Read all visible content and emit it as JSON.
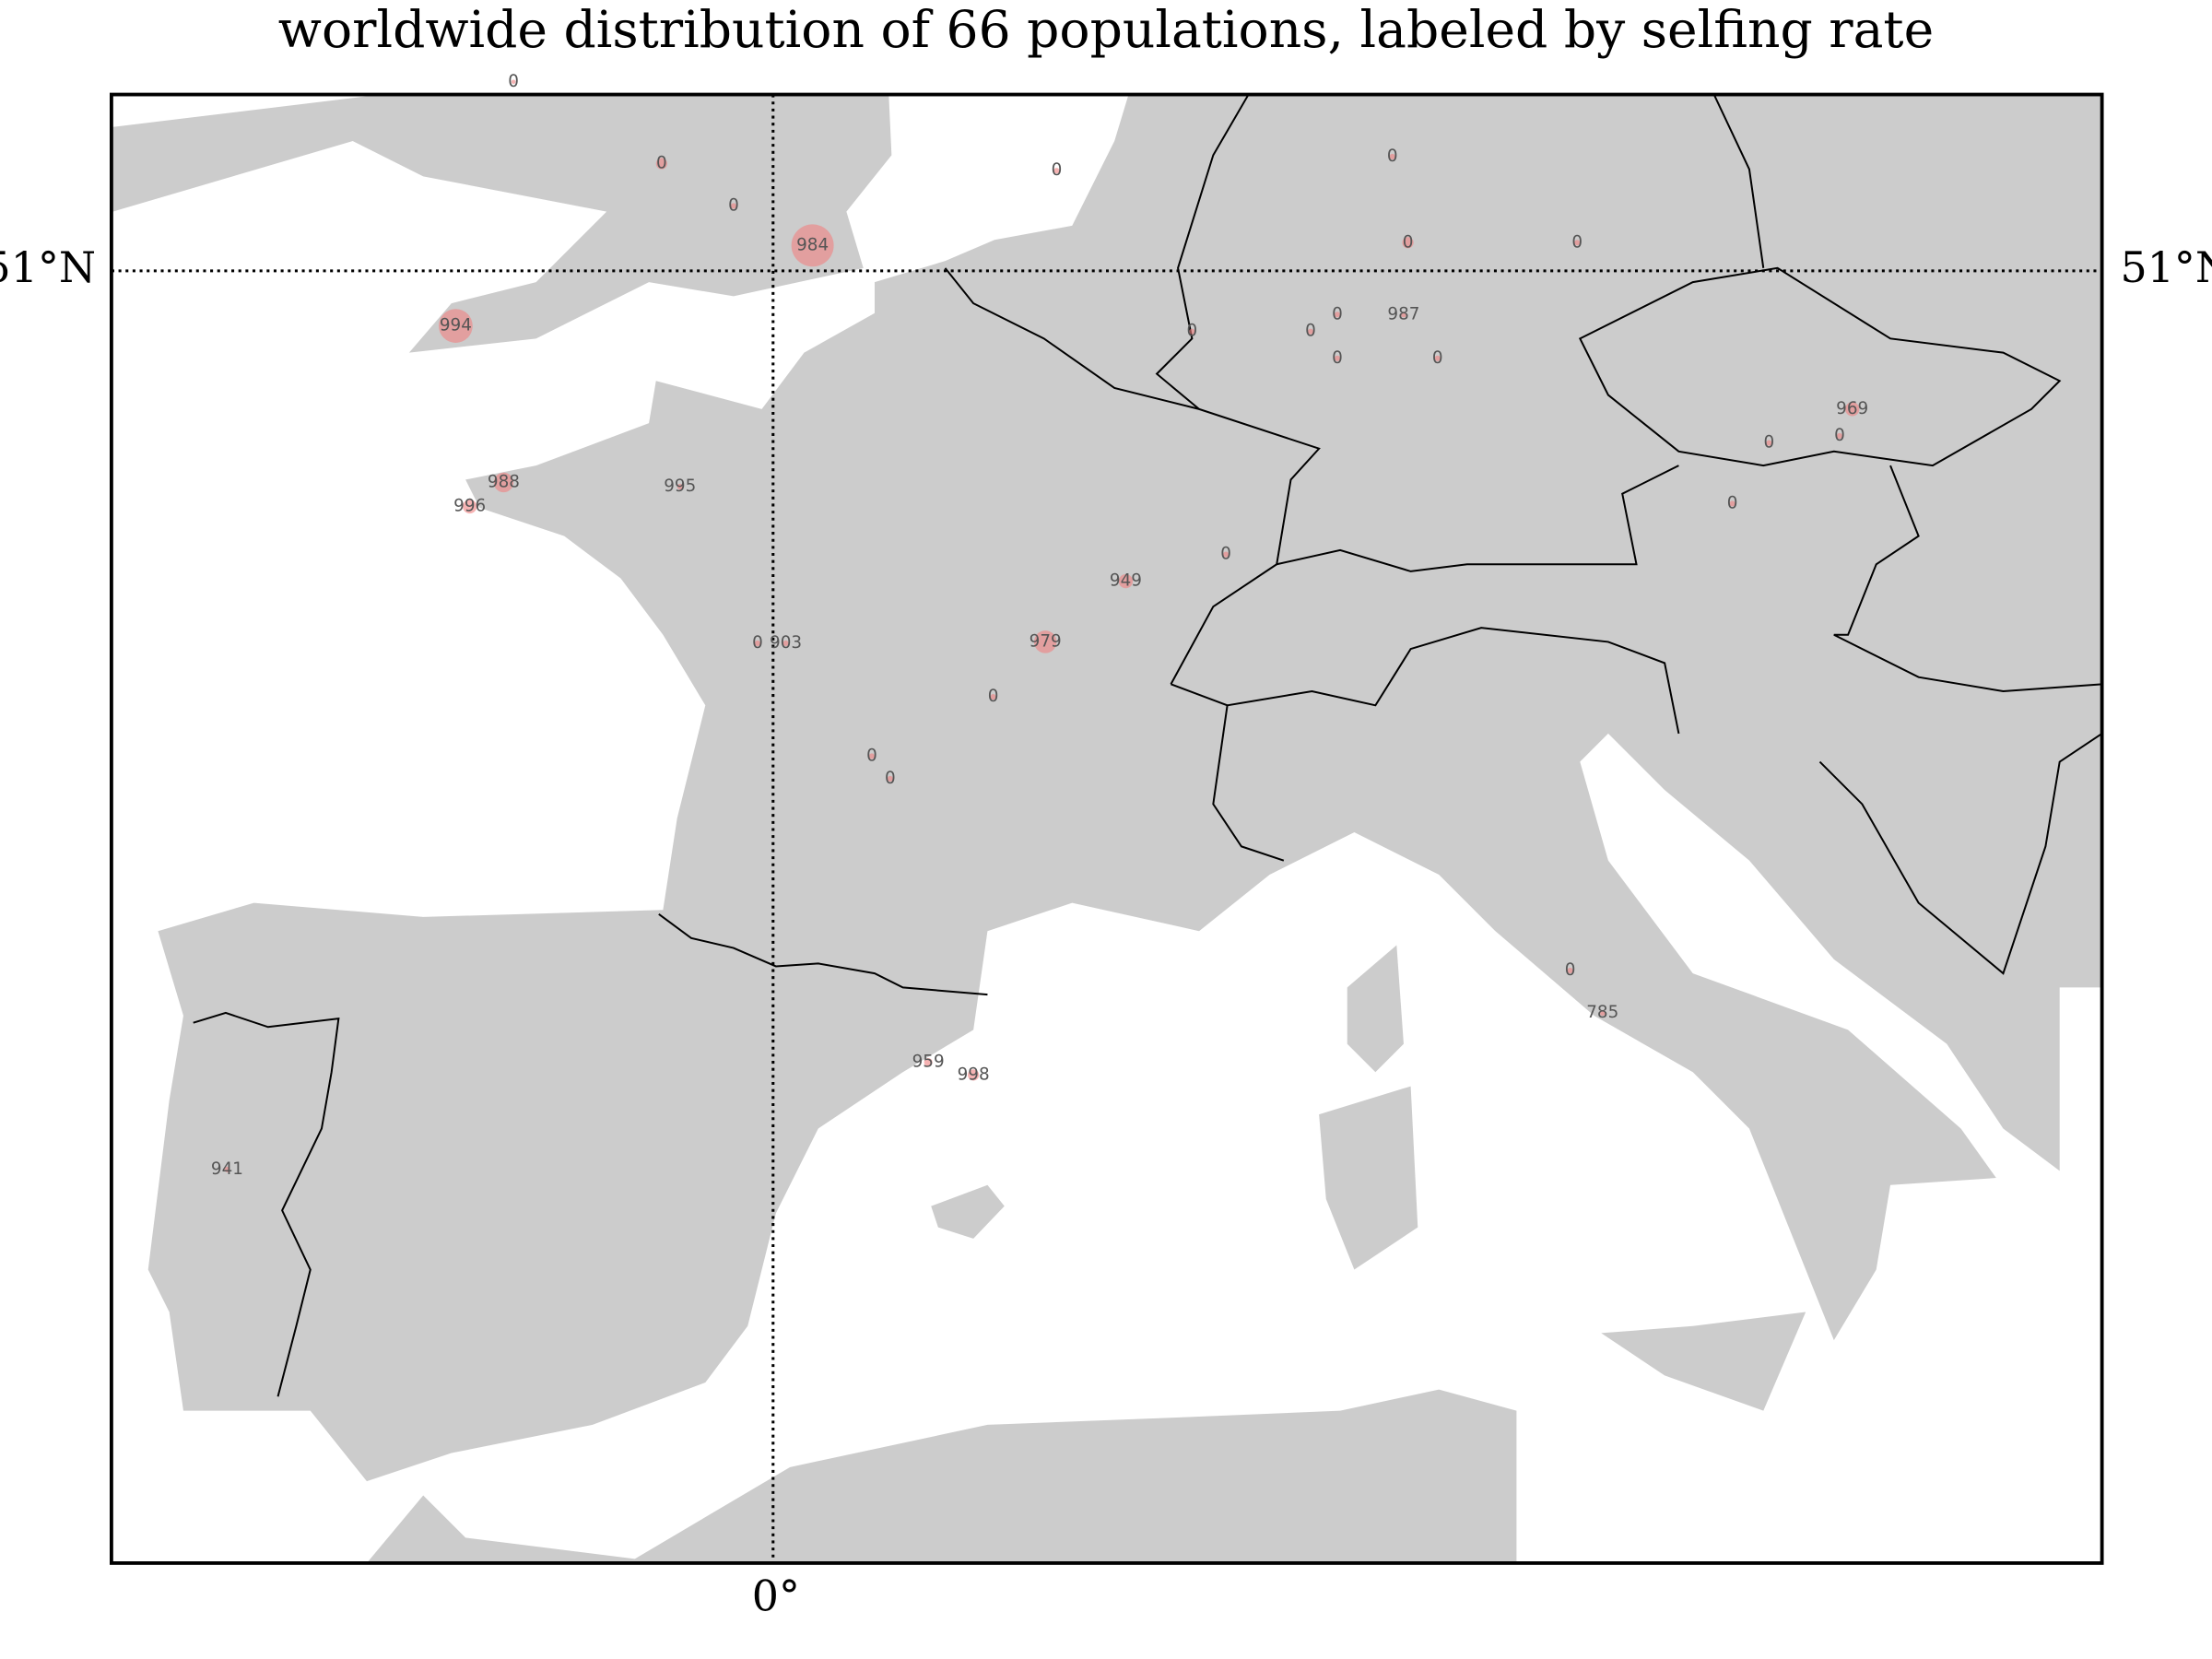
{
  "title": "worldwide distribution of 66 populations, labeled by selfing rate",
  "parallel_label": "51°N",
  "meridian_label": "0°",
  "values": [
    0,
    0,
    0,
    984,
    994,
    0,
    0,
    0,
    0,
    0,
    987,
    0,
    0,
    0,
    0,
    969,
    0,
    0,
    0,
    988,
    996,
    995,
    0,
    949,
    0,
    903,
    979,
    0,
    0,
    0,
    0,
    785,
    959,
    998,
    941
  ]
}
